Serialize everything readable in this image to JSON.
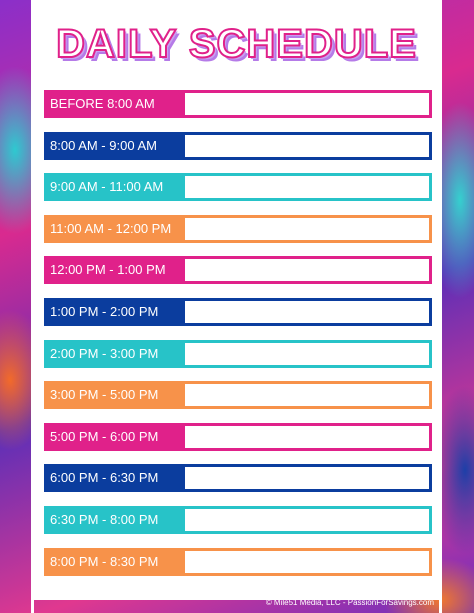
{
  "header": {
    "title": "DAILY SCHEDULE"
  },
  "rows": [
    "BEFORE 8:00 AM",
    "8:00 AM - 9:00 AM",
    "9:00 AM - 11:00 AM",
    "11:00 AM - 12:00 PM",
    "12:00 PM - 1:00 PM",
    "1:00 PM - 2:00 PM",
    "2:00 PM - 3:00 PM",
    "3:00 PM - 5:00 PM",
    "5:00 PM - 6:00 PM",
    "6:00 PM - 6:30 PM",
    "6:30 PM - 8:00 PM",
    "8:00 PM - 8:30 PM"
  ],
  "footer": "© Mile51 Media, LLC - PassionForSavings.com"
}
